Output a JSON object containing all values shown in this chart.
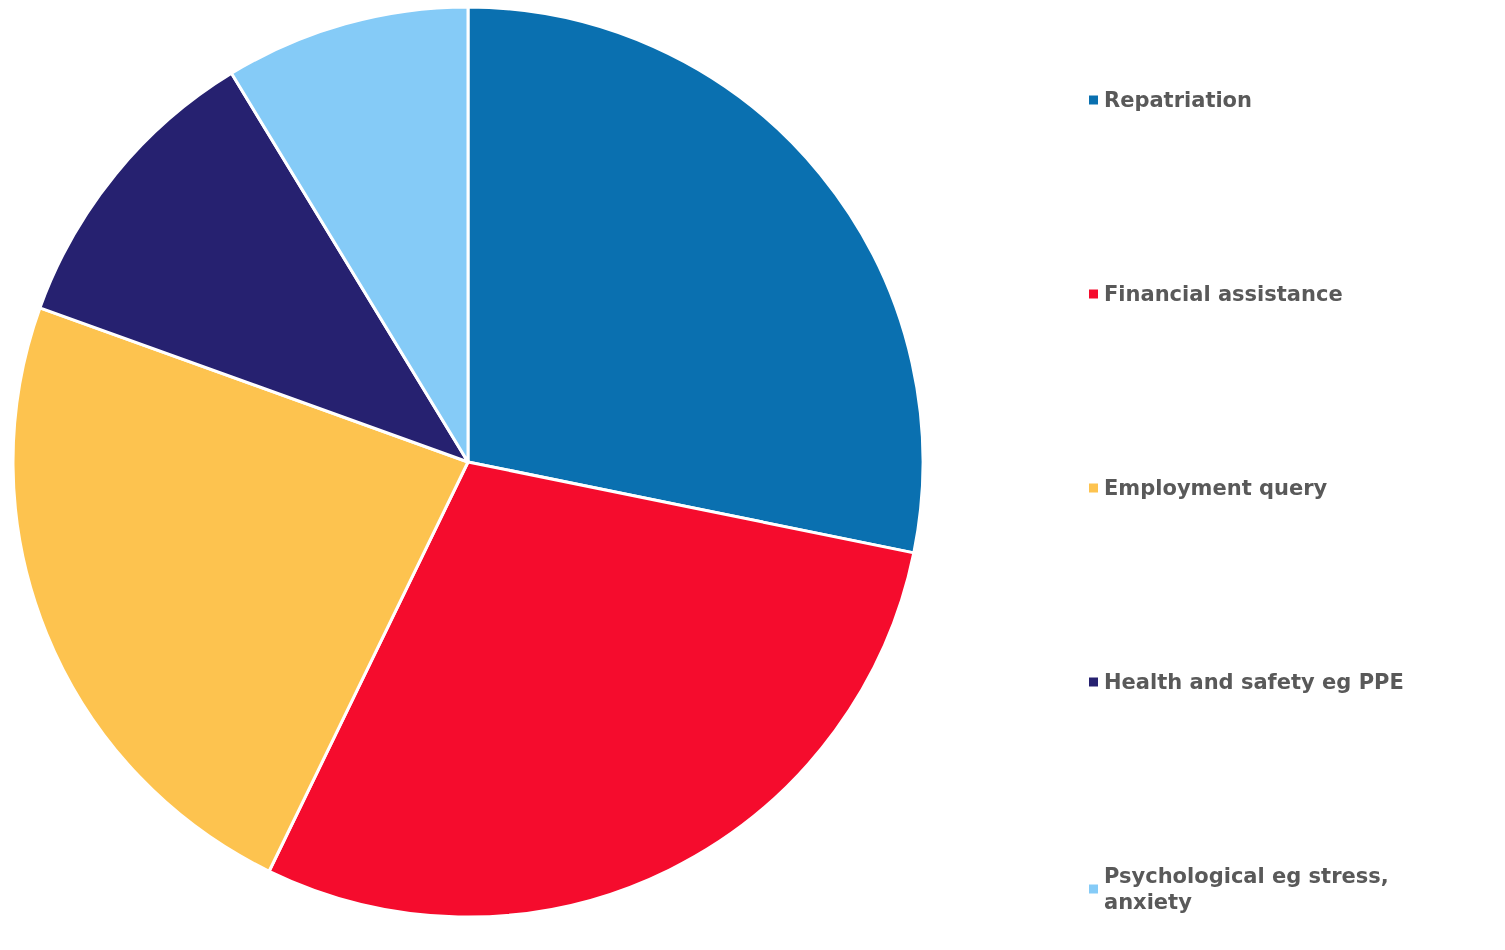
{
  "chart_data": {
    "type": "pie",
    "categories": [
      "Repatriation",
      "Financial assistance",
      "Employment query",
      "Health and safety eg PPE",
      "Psychological eg stress, anxiety"
    ],
    "values": [
      28.2,
      29,
      23.3,
      10.8,
      8.7
    ],
    "colors": [
      "#0a70b0",
      "#f50c2d",
      "#fdc34f",
      "#262170",
      "#85cbf7"
    ],
    "legend": "right"
  }
}
